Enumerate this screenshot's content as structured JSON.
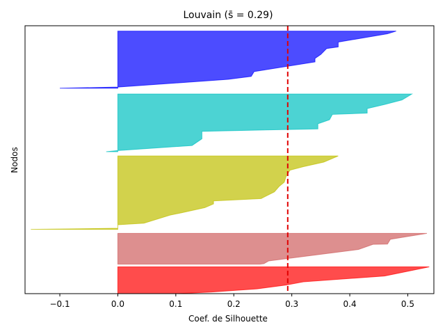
{
  "chart_data": {
    "type": "area",
    "title": "Louvain (s̄ = 0.29)",
    "xlabel": "Coef. de Silhouette",
    "ylabel": "Nodos",
    "xlim": [
      -0.16,
      0.545
    ],
    "ylim": [
      0,
      100
    ],
    "x_ticks": [
      -0.1,
      0.0,
      0.1,
      0.2,
      0.3,
      0.4,
      0.5
    ],
    "x_tick_labels": [
      "−0.1",
      "0.0",
      "0.1",
      "0.2",
      "0.3",
      "0.4",
      "0.5"
    ],
    "grid": false,
    "mean_line": {
      "x": 0.293,
      "color": "#e00000",
      "style": "dashed"
    },
    "clusters": [
      {
        "color": "#ff0000",
        "y_range": [
          0,
          10
        ],
        "profile": [
          [
            0.537,
            10
          ],
          [
            0.51,
            8.8
          ],
          [
            0.46,
            6.6
          ],
          [
            0.32,
            4.4
          ],
          [
            0.29,
            3.2
          ],
          [
            0.24,
            1.8
          ],
          [
            0.16,
            0.6
          ],
          [
            0.1,
            0
          ]
        ]
      },
      {
        "color": "#cf6060",
        "y_range": [
          11,
          22.5
        ],
        "profile": [
          [
            0.533,
            22.5
          ],
          [
            0.47,
            20.3
          ],
          [
            0.465,
            18.5
          ],
          [
            0.44,
            18.4
          ],
          [
            0.415,
            16.5
          ],
          [
            0.26,
            12.2
          ],
          [
            0.252,
            11.2
          ],
          [
            0.245,
            11
          ]
        ]
      },
      {
        "color": "#bfbf00",
        "y_range": [
          24,
          51.4
        ],
        "profile": [
          [
            0.38,
            51.4
          ],
          [
            0.355,
            49.1
          ],
          [
            0.32,
            47.4
          ],
          [
            0.297,
            46.1
          ],
          [
            0.29,
            43.7
          ],
          [
            0.287,
            41.6
          ],
          [
            0.278,
            40
          ],
          [
            0.27,
            38
          ],
          [
            0.247,
            35.5
          ],
          [
            0.165,
            34.6
          ],
          [
            0.165,
            33.5
          ],
          [
            0.15,
            32.1
          ],
          [
            0.11,
            30.2
          ],
          [
            0.09,
            29.3
          ],
          [
            0.045,
            26.3
          ],
          [
            0.0,
            25.7
          ],
          [
            0.0,
            24.4
          ],
          [
            -0.15,
            24
          ]
        ]
      },
      {
        "color": "#00c0c0",
        "y_range": [
          53,
          74.5
        ],
        "profile": [
          [
            0.507,
            74.5
          ],
          [
            0.49,
            72.3
          ],
          [
            0.46,
            70.6
          ],
          [
            0.43,
            69.1
          ],
          [
            0.43,
            67.4
          ],
          [
            0.37,
            66.9
          ],
          [
            0.365,
            64.9
          ],
          [
            0.345,
            63.4
          ],
          [
            0.345,
            61.5
          ],
          [
            0.145,
            60.6
          ],
          [
            0.145,
            57.8
          ],
          [
            0.128,
            55.3
          ],
          [
            0.0,
            53.4
          ],
          [
            -0.02,
            53
          ]
        ]
      },
      {
        "color": "#0000ff",
        "y_range": [
          76,
          98
        ],
        "profile": [
          [
            0.48,
            98
          ],
          [
            0.465,
            97
          ],
          [
            0.38,
            93.9
          ],
          [
            0.38,
            92.1
          ],
          [
            0.36,
            91.5
          ],
          [
            0.35,
            89.3
          ],
          [
            0.34,
            87.8
          ],
          [
            0.34,
            86.5
          ],
          [
            0.235,
            82.9
          ],
          [
            0.23,
            81.1
          ],
          [
            0.19,
            80
          ],
          [
            0.0,
            77.1
          ],
          [
            -0.1,
            76.7
          ]
        ]
      }
    ]
  }
}
